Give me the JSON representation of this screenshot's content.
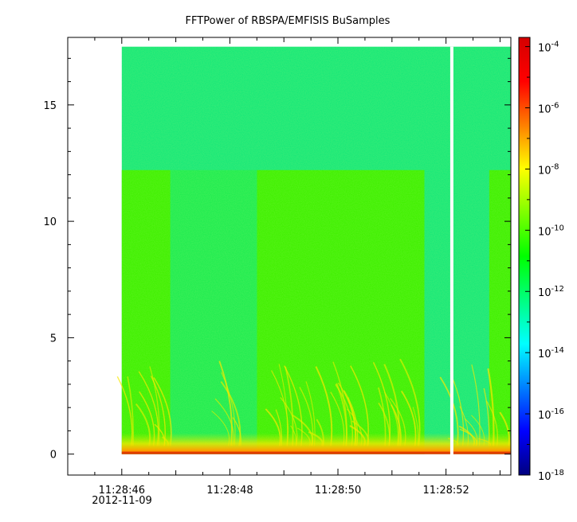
{
  "chart_data": {
    "type": "heatmap",
    "title": "FFTPower of RBSPA/EMFISIS  BuSamples",
    "xlabel": "",
    "ylabel": "",
    "x_ticks": [
      "11:28:46",
      "11:28:48",
      "11:28:50",
      "11:28:52"
    ],
    "x_date_label": "2012-11-09",
    "x_range": [
      "11:28:45.0",
      "11:28:53.2"
    ],
    "y_range": [
      -0.9,
      17.9
    ],
    "y_ticks": [
      0,
      5,
      10,
      15
    ],
    "data_extent": {
      "x_start": "11:28:46.0",
      "x_end": "11:28:53.2",
      "y_min": 0,
      "y_max": 17.5
    },
    "gap_at": "11:28:52.1",
    "colorbar": {
      "scale": "log",
      "range": [
        1e-18,
        0.0002
      ],
      "ticks": [
        {
          "value": 0.0001,
          "base": "10",
          "exp": "-4"
        },
        {
          "value": 1e-06,
          "base": "10",
          "exp": "-6"
        },
        {
          "value": 1e-08,
          "base": "10",
          "exp": "-8"
        },
        {
          "value": 1e-10,
          "base": "10",
          "exp": "-10"
        },
        {
          "value": 1e-12,
          "base": "10",
          "exp": "-12"
        },
        {
          "value": 1e-14,
          "base": "10",
          "exp": "-14"
        },
        {
          "value": 1e-16,
          "base": "10",
          "exp": "-16"
        },
        {
          "value": 1e-18,
          "base": "10",
          "exp": "-18"
        }
      ],
      "colors": [
        "#00007f",
        "#0000ff",
        "#007fff",
        "#00ffff",
        "#00ff7f",
        "#00ff00",
        "#7fff00",
        "#ffff00",
        "#ff7f00",
        "#ff0000",
        "#d40000"
      ]
    },
    "grid": false
  }
}
